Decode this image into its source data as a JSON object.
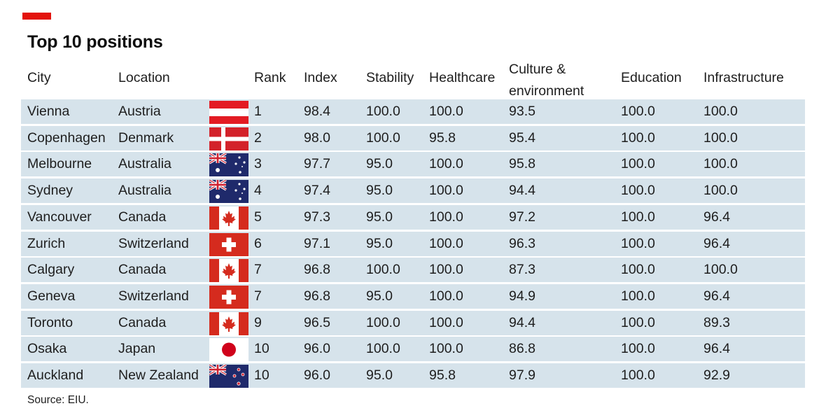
{
  "title": "Top 10 positions",
  "source": "Source: EIU.",
  "colors": {
    "accent": "#e3120b",
    "row_background": "#d6e3eb",
    "text": "#1e1e1e"
  },
  "chart_data": {
    "type": "table",
    "title": "Top 10 positions",
    "columns": [
      "City",
      "Location",
      "Rank",
      "Index",
      "Stability",
      "Healthcare",
      "Culture & environment",
      "Education",
      "Infrastructure"
    ],
    "header_lines": {
      "culture": [
        "Culture &",
        "environment"
      ]
    },
    "rows": [
      {
        "city": "Vienna",
        "location": "Austria",
        "flag": "austria-flag-icon",
        "rank": "1",
        "index": "98.4",
        "stability": "100.0",
        "healthcare": "100.0",
        "culture": "93.5",
        "education": "100.0",
        "infrastructure": "100.0"
      },
      {
        "city": "Copenhagen",
        "location": "Denmark",
        "flag": "denmark-flag-icon",
        "rank": "2",
        "index": "98.0",
        "stability": "100.0",
        "healthcare": "95.8",
        "culture": "95.4",
        "education": "100.0",
        "infrastructure": "100.0"
      },
      {
        "city": "Melbourne",
        "location": "Australia",
        "flag": "australia-flag-icon",
        "rank": "3",
        "index": "97.7",
        "stability": "95.0",
        "healthcare": "100.0",
        "culture": "95.8",
        "education": "100.0",
        "infrastructure": "100.0"
      },
      {
        "city": "Sydney",
        "location": "Australia",
        "flag": "australia-flag-icon",
        "rank": "4",
        "index": "97.4",
        "stability": "95.0",
        "healthcare": "100.0",
        "culture": "94.4",
        "education": "100.0",
        "infrastructure": "100.0"
      },
      {
        "city": "Vancouver",
        "location": "Canada",
        "flag": "canada-flag-icon",
        "rank": "5",
        "index": "97.3",
        "stability": "95.0",
        "healthcare": "100.0",
        "culture": "97.2",
        "education": "100.0",
        "infrastructure": "96.4"
      },
      {
        "city": "Zurich",
        "location": "Switzerland",
        "flag": "switzerland-flag-icon",
        "rank": "6",
        "index": "97.1",
        "stability": "95.0",
        "healthcare": "100.0",
        "culture": "96.3",
        "education": "100.0",
        "infrastructure": "96.4"
      },
      {
        "city": "Calgary",
        "location": "Canada",
        "flag": "canada-flag-icon",
        "rank": "7",
        "index": "96.8",
        "stability": "100.0",
        "healthcare": "100.0",
        "culture": "87.3",
        "education": "100.0",
        "infrastructure": "100.0"
      },
      {
        "city": "Geneva",
        "location": "Switzerland",
        "flag": "switzerland-flag-icon",
        "rank": "7",
        "index": "96.8",
        "stability": "95.0",
        "healthcare": "100.0",
        "culture": "94.9",
        "education": "100.0",
        "infrastructure": "96.4"
      },
      {
        "city": "Toronto",
        "location": "Canada",
        "flag": "canada-flag-icon",
        "rank": "9",
        "index": "96.5",
        "stability": "100.0",
        "healthcare": "100.0",
        "culture": "94.4",
        "education": "100.0",
        "infrastructure": "89.3"
      },
      {
        "city": "Osaka",
        "location": "Japan",
        "flag": "japan-flag-icon",
        "rank": "10",
        "index": "96.0",
        "stability": "100.0",
        "healthcare": "100.0",
        "culture": "86.8",
        "education": "100.0",
        "infrastructure": "96.4"
      },
      {
        "city": "Auckland",
        "location": "New Zealand",
        "flag": "new-zealand-flag-icon",
        "rank": "10",
        "index": "96.0",
        "stability": "95.0",
        "healthcare": "95.8",
        "culture": "97.9",
        "education": "100.0",
        "infrastructure": "92.9"
      }
    ]
  }
}
